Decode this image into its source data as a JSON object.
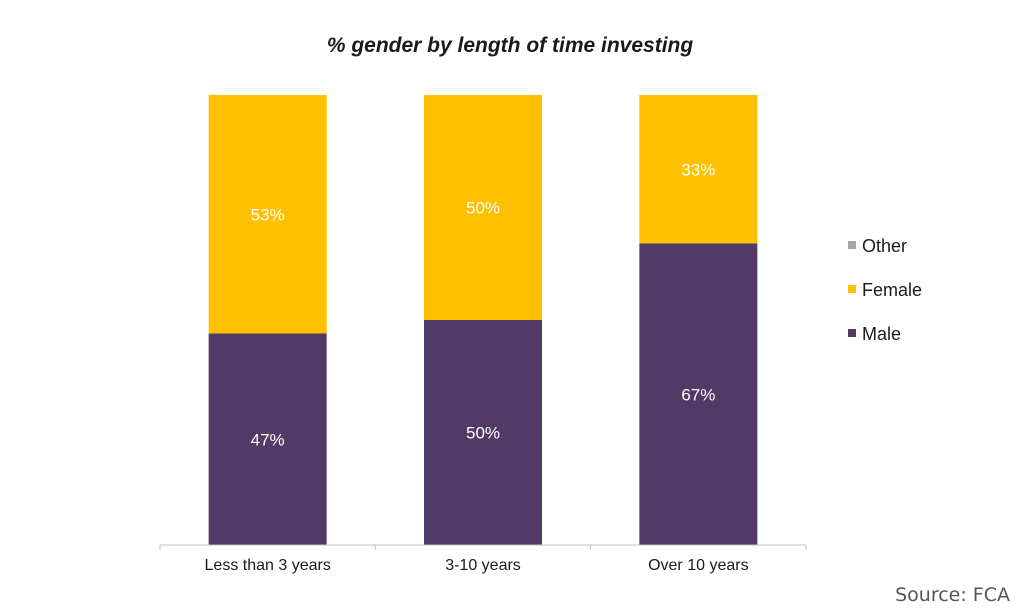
{
  "chart_data": {
    "type": "bar",
    "stacked": true,
    "title": "% gender by length of time investing",
    "xlabel": "",
    "ylabel": "",
    "categories": [
      "Less than 3 years",
      "3-10 years",
      "Over 10 years"
    ],
    "series": [
      {
        "name": "Male",
        "values": [
          47,
          50,
          67
        ],
        "color": "#523a66",
        "labels": [
          "47%",
          "50%",
          "67%"
        ],
        "label_color": "#ffffff"
      },
      {
        "name": "Female",
        "values": [
          53,
          50,
          33
        ],
        "color": "#ffc000",
        "labels": [
          "53%",
          "50%",
          "33%"
        ],
        "label_color": "#ffffff"
      },
      {
        "name": "Other",
        "values": [
          0,
          0,
          0
        ],
        "color": "#a6a6a6",
        "labels": [
          "",
          "",
          ""
        ],
        "label_color": "#ffffff"
      }
    ],
    "ylim": [
      0,
      100
    ],
    "grid": false,
    "legend": {
      "position": "right",
      "order": [
        "Other",
        "Female",
        "Male"
      ]
    }
  },
  "source": "Source: FCA"
}
